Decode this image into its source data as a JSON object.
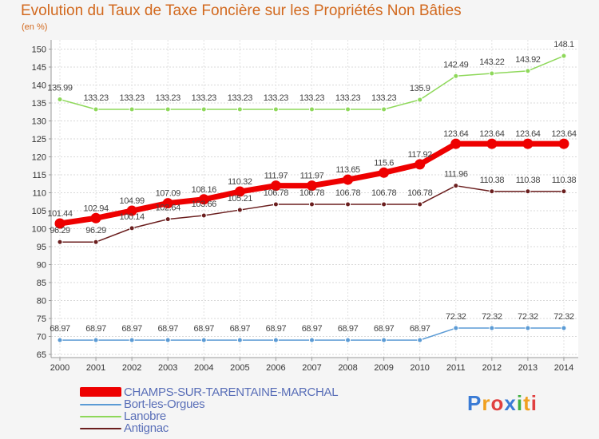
{
  "chart_data": {
    "type": "line",
    "title": "Evolution du Taux de Taxe Foncière sur les Propriétés Non Bâties",
    "ylabel": "(en %)",
    "xlabel": "",
    "ylim": [
      65,
      152
    ],
    "yticks": [
      65,
      70,
      75,
      80,
      85,
      90,
      95,
      100,
      105,
      110,
      115,
      120,
      125,
      130,
      135,
      140,
      145,
      150
    ],
    "grid": true,
    "x": [
      "2000",
      "2001",
      "2002",
      "2003",
      "2004",
      "2005",
      "2006",
      "2007",
      "2008",
      "2009",
      "2010",
      "2011",
      "2012",
      "2013",
      "2014"
    ],
    "series": [
      {
        "name": "CHAMPS-SUR-TARENTAINE-MARCHAL",
        "color": "#ee0000",
        "values": [
          101.44,
          102.94,
          104.99,
          107.09,
          108.16,
          110.32,
          111.97,
          111.97,
          113.65,
          115.6,
          117.92,
          123.64,
          123.64,
          123.64,
          123.64
        ],
        "labels": [
          "101.44",
          "102.94",
          "104.99",
          "107.09",
          "108.16",
          "110.32",
          "111.97",
          "111.97",
          "113.65",
          "115.6",
          "117.92",
          "123.64",
          "123.64",
          "123.64",
          "123.64"
        ]
      },
      {
        "name": "Bort-les-Orgues",
        "color": "#5b9bd5",
        "values": [
          68.97,
          68.97,
          68.97,
          68.97,
          68.97,
          68.97,
          68.97,
          68.97,
          68.97,
          68.97,
          68.97,
          72.32,
          72.32,
          72.32,
          72.32
        ],
        "labels": [
          "68.97",
          "68.97",
          "68.97",
          "68.97",
          "68.97",
          "68.97",
          "68.97",
          "68.97",
          "68.97",
          "68.97",
          "68.97",
          "72.32",
          "72.32",
          "72.32",
          "72.32"
        ]
      },
      {
        "name": "Lanobre",
        "color": "#8ed85a",
        "values": [
          135.99,
          133.23,
          133.23,
          133.23,
          133.23,
          133.23,
          133.23,
          133.23,
          133.23,
          133.23,
          135.9,
          142.49,
          143.22,
          143.92,
          148.1
        ],
        "labels": [
          "135.99",
          "133.23",
          "133.23",
          "133.23",
          "133.23",
          "133.23",
          "133.23",
          "133.23",
          "133.23",
          "133.23",
          "135.9",
          "142.49",
          "143.22",
          "143.92",
          "148.1"
        ]
      },
      {
        "name": "Antignac",
        "color": "#6b1f1f",
        "values": [
          96.29,
          96.29,
          100.14,
          102.64,
          103.66,
          105.21,
          106.78,
          106.78,
          106.78,
          106.78,
          106.78,
          111.96,
          110.38,
          110.38,
          110.38
        ],
        "labels": [
          "96.29",
          "96.29",
          "100.14",
          "102.64",
          "103.66",
          "105.21",
          "106.78",
          "106.78",
          "106.78",
          "106.78",
          "106.78",
          "111.96",
          "110.38",
          "110.38",
          "110.38"
        ]
      }
    ],
    "legend_position": "bottom-left"
  },
  "brand": {
    "letters": [
      "P",
      "r",
      "o",
      "x",
      "i",
      "t",
      "i"
    ],
    "colors": [
      "#3a7bd5",
      "#f0a020",
      "#e04040",
      "#3a7bd5",
      "#40b040",
      "#f0a020",
      "#e04040"
    ]
  }
}
